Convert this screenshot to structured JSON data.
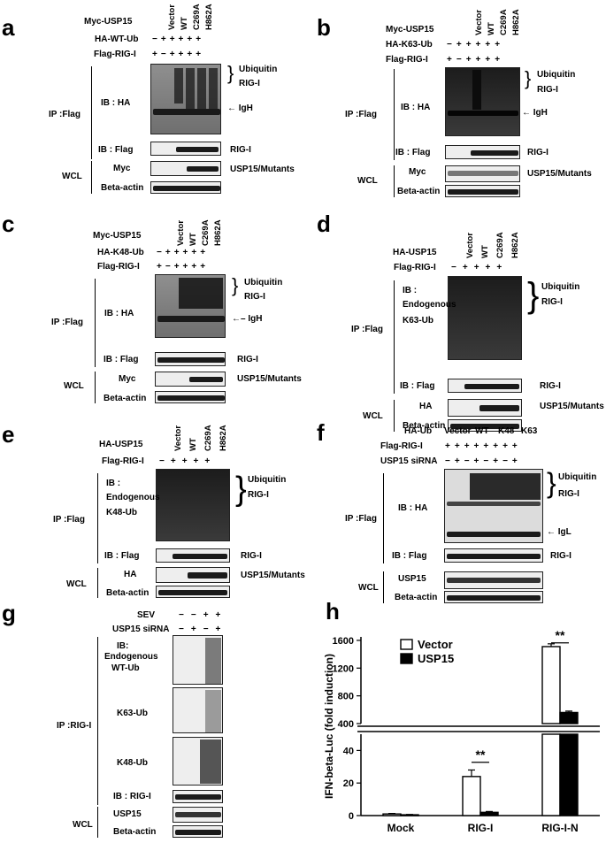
{
  "panels": {
    "a": {
      "letter": "a",
      "header_rows": [
        "Myc-USP15",
        "HA-WT-Ub",
        "Flag-RIG-I"
      ],
      "lane_labels": [
        "Vector",
        "WT",
        "C269A",
        "H862A"
      ],
      "signs_ha": [
        "−",
        "+",
        "+",
        "+",
        "+",
        "+"
      ],
      "signs_flag": [
        "+",
        "−",
        "+",
        "+",
        "+",
        "+"
      ],
      "ip": "IP :Flag",
      "ib_ha": "IB : HA",
      "ib_flag": "IB : Flag",
      "wcl": "WCL",
      "myc": "Myc",
      "actin": "Beta-actin",
      "ub": "Ubiquitin",
      "rig": "RIG-I",
      "igh": "IgH",
      "rig2": "RIG-I",
      "mut": "USP15/Mutants"
    },
    "b": {
      "letter": "b",
      "header_rows": [
        "Myc-USP15",
        "HA-K63-Ub",
        "Flag-RIG-I"
      ],
      "lane_labels": [
        "Vector",
        "WT",
        "C269A",
        "H862A"
      ],
      "signs_ha": [
        "−",
        "+",
        "+",
        "+",
        "+",
        "+"
      ],
      "signs_flag": [
        "+",
        "−",
        "+",
        "+",
        "+",
        "+"
      ],
      "ip": "IP :Flag",
      "ib_ha": "IB : HA",
      "ib_flag": "IB : Flag",
      "wcl": "WCL",
      "myc": "Myc",
      "actin": "Beta-actin",
      "ub": "Ubiquitin",
      "rig": "RIG-I",
      "igh": "IgH",
      "rig2": "RIG-I",
      "mut": "USP15/Mutants"
    },
    "c": {
      "letter": "c",
      "header_rows": [
        "Myc-USP15",
        "HA-K48-Ub",
        "Flag-RIG-I"
      ],
      "lane_labels": [
        "Vector",
        "WT",
        "C269A",
        "H862A"
      ],
      "signs_ha": [
        "−",
        "+",
        "+",
        "+",
        "+",
        "+"
      ],
      "signs_flag": [
        "+",
        "−",
        "+",
        "+",
        "+",
        "+"
      ],
      "ip": "IP :Flag",
      "ib_ha": "IB : HA",
      "ib_flag": "IB : Flag",
      "wcl": "WCL",
      "myc": "Myc",
      "actin": "Beta-actin",
      "ub": "Ubiquitin",
      "rig": "RIG-I",
      "igh": "IgH",
      "rig2": "RIG-I",
      "mut": "USP15/Mutants"
    },
    "d": {
      "letter": "d",
      "header_rows": [
        "HA-USP15",
        "Flag-RIG-I"
      ],
      "lane_labels": [
        "Vector",
        "WT",
        "C269A",
        "H862A"
      ],
      "signs_flag": [
        "−",
        "+",
        "+",
        "+",
        "+"
      ],
      "ip": "IP :Flag",
      "ib1": "IB :",
      "ib2": "Endogenous",
      "ib3": "K63-Ub",
      "ib_flag": "IB : Flag",
      "wcl": "WCL",
      "ha": "HA",
      "actin": "Beta-actin",
      "ub": "Ubiquitin",
      "rig": "RIG-I",
      "rig2": "RIG-I",
      "mut": "USP15/Mutants"
    },
    "e": {
      "letter": "e",
      "header_rows": [
        "HA-USP15",
        "Flag-RIG-I"
      ],
      "lane_labels": [
        "Vector",
        "WT",
        "C269A",
        "H862A"
      ],
      "signs_flag": [
        "−",
        "+",
        "+",
        "+",
        "+"
      ],
      "ip": "IP :Flag",
      "ib1": "IB :",
      "ib2": "Endogenous",
      "ib3": "K48-Ub",
      "ib_flag": "IB : Flag",
      "wcl": "WCL",
      "ha": "HA",
      "actin": "Beta-actin",
      "ub": "Ubiquitin",
      "rig": "RIG-I",
      "rig2": "RIG-I",
      "mut": "USP15/Mutants"
    },
    "f": {
      "letter": "f",
      "header_rows": [
        "HA-Ub",
        "Flag-RIG-I",
        "USP15 siRNA"
      ],
      "groups": [
        "Vector",
        "WT",
        "K48",
        "K63"
      ],
      "signs_flag": [
        "+",
        "+",
        "+",
        "+",
        "+",
        "+",
        "+",
        "+"
      ],
      "signs_si": [
        "−",
        "+",
        "−",
        "+",
        "−",
        "+",
        "−",
        "+"
      ],
      "ip": "IP :Flag",
      "ib_ha": "IB : HA",
      "ib_flag": "IB : Flag",
      "wcl": "WCL",
      "usp": "USP15",
      "actin": "Beta-actin",
      "ub": "Ubiquitin",
      "rig": "RIG-I",
      "igl": "IgL",
      "rig2": "RIG-I"
    },
    "g": {
      "letter": "g",
      "header_rows": [
        "SEV",
        "USP15 siRNA"
      ],
      "signs_sev": [
        "−",
        "−",
        "+",
        "+"
      ],
      "signs_si": [
        "−",
        "+",
        "−",
        "+"
      ],
      "ib1": "IB:",
      "ib2": "Endogenous",
      "ib3": "WT-Ub",
      "k63": "K63-Ub",
      "k48": "K48-Ub",
      "ip": "IP :RIG-I",
      "ib_rig": "IB : RIG-I",
      "wcl": "WCL",
      "usp": "USP15",
      "actin": "Beta-actin"
    }
  },
  "chart_data": {
    "type": "bar",
    "letter": "h",
    "ylabel": "IFN-beta-Luc (fold induction)",
    "categories": [
      "Mock",
      "RIG-I",
      "RIG-I-N"
    ],
    "series": [
      {
        "name": "Vector",
        "values": [
          1,
          24,
          1510
        ],
        "errors": [
          0.3,
          4,
          40
        ],
        "color": "#ffffff"
      },
      {
        "name": "USP15",
        "values": [
          0.5,
          2,
          560
        ],
        "errors": [
          0.2,
          0.5,
          20
        ],
        "color": "#000000"
      }
    ],
    "y_ticks_lower": [
      "0",
      "20",
      "40"
    ],
    "y_ticks_upper": [
      "400",
      "800",
      "1200",
      "1600"
    ],
    "ylim_lower": [
      0,
      50
    ],
    "ylim_upper": [
      400,
      1650
    ],
    "broken_axis": true,
    "annotations": [
      "**",
      "**"
    ],
    "legend_position": "top-left"
  }
}
